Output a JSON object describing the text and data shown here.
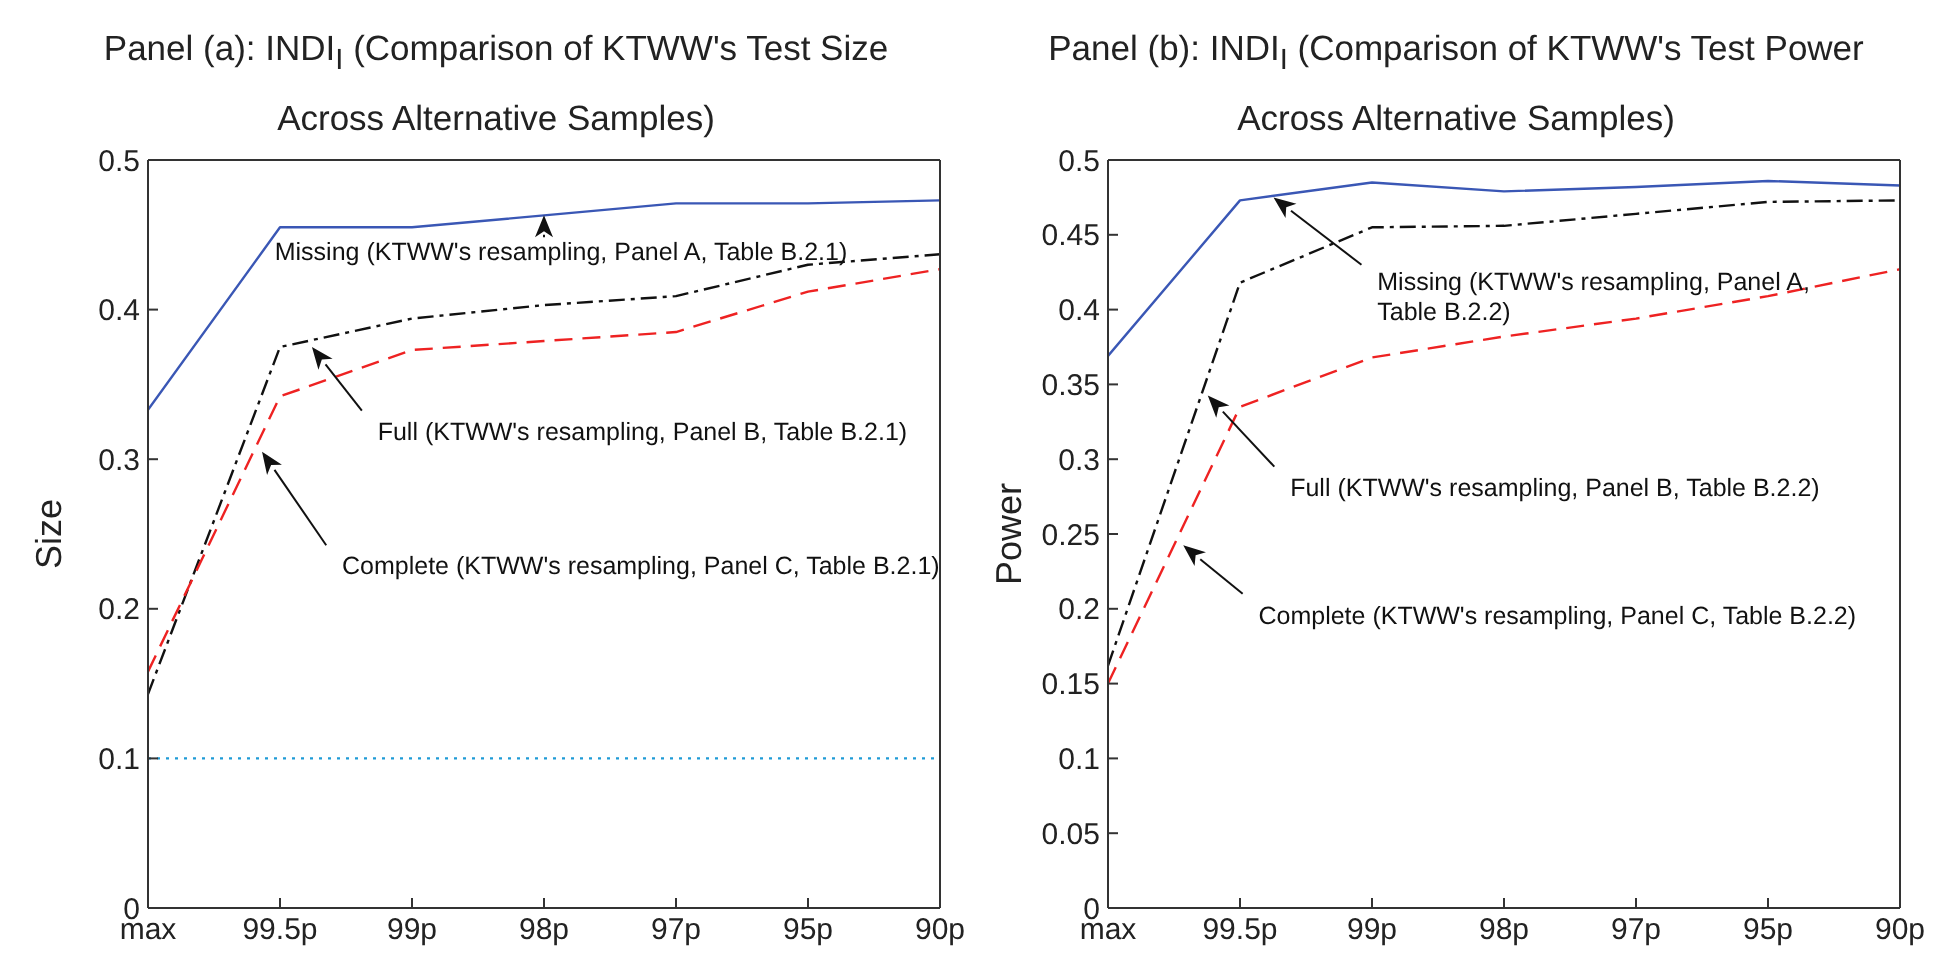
{
  "chart_data": [
    {
      "type": "line",
      "title": "Panel (a): INDI$_{I}$ (Comparison of KTWW's Test Size Across Alternative Samples)",
      "ylabel": "Size",
      "categories": [
        "max",
        "99.5p",
        "99p",
        "98p",
        "97p",
        "95p",
        "90p"
      ],
      "series": [
        {
          "color": "#3a57b5",
          "line_style": "solid",
          "values": [
            0.333,
            0.455,
            0.455,
            0.463,
            0.471,
            0.471,
            0.473
          ]
        },
        {
          "color": "#111111",
          "line_style": "dashdot",
          "values": [
            0.143,
            0.375,
            0.394,
            0.403,
            0.409,
            0.43,
            0.437
          ]
        },
        {
          "color": "#ee2222",
          "line_style": "dashed",
          "values": [
            0.158,
            0.342,
            0.373,
            0.379,
            0.385,
            0.412,
            0.427
          ]
        }
      ],
      "ylim": [
        0,
        0.5
      ],
      "yticks": [
        0,
        0.1,
        0.2,
        0.3,
        0.4,
        0.5
      ],
      "grid": false,
      "legend": false,
      "marker": "none",
      "ref_lines": [
        {
          "axis": "y",
          "value": 0.1,
          "color": "#1f9bd6",
          "line_style": "dotted"
        }
      ],
      "annotations": [
        "Missing (KTWW's resampling, Panel A, Table B.2.1)",
        "Full (KTWW's resampling, Panel B, Table B.2.1)",
        "Complete (KTWW's resampling, Panel C, Table B.2.1)"
      ]
    },
    {
      "type": "line",
      "title": "Panel (b): INDI$_{I}$ (Comparison of KTWW's Test Power Across Alternative Samples)",
      "ylabel": "Power",
      "categories": [
        "max",
        "99.5p",
        "99p",
        "98p",
        "97p",
        "95p",
        "90p"
      ],
      "series": [
        {
          "color": "#3a57b5",
          "line_style": "solid",
          "values": [
            0.369,
            0.473,
            0.485,
            0.479,
            0.482,
            0.486,
            0.483
          ]
        },
        {
          "color": "#111111",
          "line_style": "dashdot",
          "values": [
            0.162,
            0.418,
            0.455,
            0.456,
            0.464,
            0.472,
            0.473
          ]
        },
        {
          "color": "#ee2222",
          "line_style": "dashed",
          "values": [
            0.15,
            0.335,
            0.368,
            0.382,
            0.394,
            0.409,
            0.427
          ]
        }
      ],
      "ylim": [
        0,
        0.5
      ],
      "yticks": [
        0,
        0.05,
        0.1,
        0.15,
        0.2,
        0.25,
        0.3,
        0.35,
        0.4,
        0.45,
        0.5
      ],
      "grid": false,
      "legend": false,
      "marker": "none",
      "annotations": [
        "Missing (KTWW's resampling, Panel A, Table B.2.2)",
        "Full (KTWW's resampling, Panel B, Table B.2.2)",
        "Complete (KTWW's resampling, Panel C, Table B.2.2)"
      ]
    }
  ]
}
